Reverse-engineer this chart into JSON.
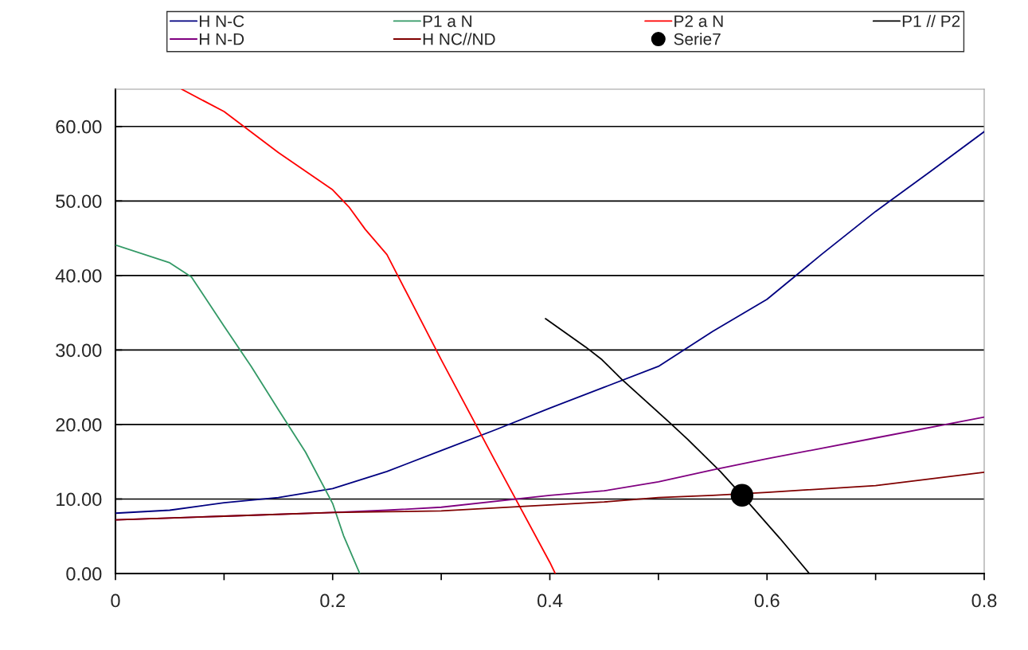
{
  "chart_data": {
    "type": "line",
    "xlim": [
      0,
      0.8
    ],
    "ylim": [
      0,
      65
    ],
    "xticks": [
      0,
      {
        "value": 0.1,
        "label": null
      },
      0.2,
      {
        "value": 0.3,
        "label": null
      },
      0.4,
      {
        "value": 0.5,
        "label": null
      },
      0.6,
      {
        "value": 0.7,
        "label": null
      },
      0.8
    ],
    "yticks": [
      {
        "value": 0,
        "label": "0.00"
      },
      {
        "value": 10,
        "label": "10.00"
      },
      {
        "value": 20,
        "label": "20.00"
      },
      {
        "value": 30,
        "label": "30.00"
      },
      {
        "value": 40,
        "label": "40.00"
      },
      {
        "value": 50,
        "label": "50.00"
      },
      {
        "value": 60,
        "label": "60.00"
      }
    ],
    "grid": "y",
    "legend": "top",
    "marker": "none",
    "line_style": "solid",
    "series": [
      {
        "name": "H N-C",
        "color": "#000080",
        "x": [
          0,
          0.05,
          0.1,
          0.15,
          0.2,
          0.25,
          0.3,
          0.35,
          0.4,
          0.45,
          0.5,
          0.55,
          0.6,
          0.65,
          0.7,
          0.75,
          0.8
        ],
        "values": [
          8.1,
          8.5,
          9.5,
          10.2,
          11.4,
          13.7,
          16.5,
          19.3,
          22.2,
          25.0,
          27.8,
          32.5,
          36.8,
          42.8,
          48.6,
          53.9,
          59.3
        ]
      },
      {
        "name": "P1 a N",
        "color": "#339966",
        "x": [
          0,
          0.05,
          0.07,
          0.1,
          0.125,
          0.15,
          0.175,
          0.2,
          0.21,
          0.225
        ],
        "values": [
          44.1,
          41.7,
          39.8,
          33.2,
          27.8,
          22.0,
          16.3,
          9.4,
          5.1,
          0
        ]
      },
      {
        "name": "P2 a N",
        "color": "#ff0000",
        "x": [
          0.061,
          0.1,
          0.15,
          0.2,
          0.215,
          0.23,
          0.25,
          0.3,
          0.35,
          0.4,
          0.405
        ],
        "values": [
          65,
          62.0,
          56.5,
          51.5,
          49.2,
          46.2,
          42.8,
          28.7,
          15.0,
          1.5,
          0
        ]
      },
      {
        "name": "P1 // P2",
        "color": "#000000",
        "x": [
          0.396,
          0.433,
          0.448,
          0.466,
          0.51,
          0.527,
          0.557,
          0.577,
          0.612,
          0.639
        ],
        "values": [
          34.2,
          30.4,
          28.7,
          26.1,
          20.3,
          18.0,
          13.7,
          10.5,
          4.7,
          0
        ]
      },
      {
        "name": "H N-D",
        "color": "#800080",
        "x": [
          0,
          0.1,
          0.2,
          0.25,
          0.3,
          0.4,
          0.45,
          0.5,
          0.55,
          0.6,
          0.7,
          0.8
        ],
        "values": [
          7.2,
          7.7,
          8.2,
          8.5,
          8.9,
          10.5,
          11.1,
          12.3,
          13.9,
          15.4,
          18.2,
          21.0
        ]
      },
      {
        "name": "H NC//ND",
        "color": "#800000",
        "x": [
          0,
          0.1,
          0.2,
          0.25,
          0.3,
          0.4,
          0.45,
          0.5,
          0.55,
          0.6,
          0.7,
          0.8
        ],
        "values": [
          7.2,
          7.7,
          8.2,
          8.3,
          8.4,
          9.2,
          9.6,
          10.2,
          10.5,
          10.9,
          11.8,
          13.6
        ]
      },
      {
        "name": "Serie7",
        "color": "#000000",
        "type": "scatter",
        "marker": "circle",
        "x": [
          0.577
        ],
        "values": [
          10.5
        ]
      }
    ]
  }
}
